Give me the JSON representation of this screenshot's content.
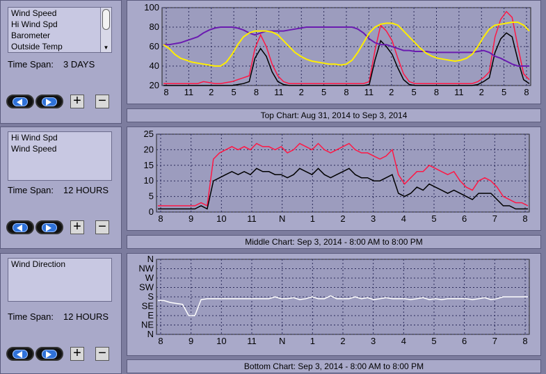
{
  "colors": {
    "plot_bg": "#9c9cbe",
    "grid": "#2a2a5a",
    "hi_wind": "#ff1744",
    "wind": "#000000",
    "barometer": "#6a1bb0",
    "temp": "#ffee00",
    "direction": "#ffffff"
  },
  "panels": {
    "top": {
      "list_items": [
        "Wind Speed",
        "Hi Wind Spd",
        "Barometer",
        "Outside Temp"
      ],
      "time_span_label": "Time Span:",
      "time_span_value": "3 DAYS",
      "caption": "Top Chart:  Aug 31, 2014  to  Sep 3, 2014"
    },
    "middle": {
      "list_items": [
        "Hi Wind Spd",
        "Wind Speed"
      ],
      "time_span_label": "Time Span:",
      "time_span_value": "12 HOURS",
      "caption": "Middle Chart:  Sep 3, 2014 - 8:00 AM  to  8:00 PM"
    },
    "bottom": {
      "list_items": [
        "Wind Direction"
      ],
      "time_span_label": "Time Span:",
      "time_span_value": "12 HOURS",
      "caption": "Bottom Chart:  Sep 3, 2014 - 8:00 AM  to  8:00 PM"
    }
  },
  "buttons": {
    "back_icon": "left-arrow-icon",
    "forward_icon": "right-arrow-icon",
    "zoom_in": "+",
    "zoom_out": "−"
  },
  "chart_data": [
    {
      "type": "line",
      "title": "",
      "x_ticks": [
        "8",
        "11",
        "2",
        "5",
        "8",
        "11",
        "2",
        "5",
        "8",
        "11",
        "2",
        "5",
        "8",
        "11",
        "2",
        "5",
        "8"
      ],
      "ylim": [
        20,
        100
      ],
      "y_ticks": [
        20,
        40,
        60,
        80,
        100
      ],
      "series": [
        {
          "name": "Hi Wind Spd",
          "color": "#ff1744",
          "values": [
            22,
            22,
            22,
            22,
            22,
            22,
            22,
            24,
            23,
            22,
            22,
            23,
            24,
            26,
            28,
            30,
            58,
            72,
            60,
            42,
            30,
            24,
            22,
            22,
            22,
            22,
            22,
            22,
            22,
            22,
            22,
            22,
            22,
            22,
            22,
            22,
            24,
            56,
            82,
            76,
            66,
            48,
            32,
            24,
            22,
            22,
            22,
            22,
            22,
            22,
            22,
            22,
            22,
            22,
            22,
            24,
            28,
            34,
            70,
            88,
            96,
            90,
            60,
            32,
            26
          ]
        },
        {
          "name": "Wind Speed",
          "color": "#000000",
          "values": [
            20,
            20,
            20,
            20,
            20,
            20,
            20,
            20,
            20,
            20,
            20,
            20,
            20,
            21,
            22,
            24,
            48,
            58,
            50,
            34,
            24,
            21,
            20,
            20,
            20,
            20,
            20,
            20,
            20,
            20,
            20,
            20,
            20,
            20,
            20,
            20,
            21,
            46,
            66,
            60,
            52,
            38,
            26,
            21,
            20,
            20,
            20,
            20,
            20,
            20,
            20,
            20,
            20,
            20,
            20,
            21,
            24,
            28,
            54,
            68,
            74,
            70,
            46,
            26,
            22
          ]
        },
        {
          "name": "Barometer",
          "color": "#6a1bb0",
          "values": [
            62,
            62,
            63,
            64,
            66,
            68,
            70,
            74,
            77,
            79,
            80,
            80,
            80,
            79,
            77,
            74,
            72,
            74,
            76,
            76,
            76,
            76,
            77,
            78,
            79,
            80,
            80,
            80,
            80,
            80,
            80,
            80,
            80,
            80,
            78,
            74,
            68,
            64,
            62,
            62,
            60,
            58,
            56,
            56,
            55,
            55,
            55,
            54,
            54,
            54,
            54,
            54,
            54,
            54,
            54,
            55,
            56,
            54,
            50,
            48,
            45,
            42,
            40,
            40,
            40
          ]
        },
        {
          "name": "Outside Temp",
          "color": "#ffee00",
          "values": [
            62,
            58,
            52,
            48,
            46,
            44,
            43,
            42,
            41,
            40,
            40,
            44,
            52,
            62,
            70,
            74,
            76,
            76,
            76,
            75,
            72,
            66,
            60,
            54,
            50,
            47,
            45,
            44,
            43,
            42,
            42,
            41,
            42,
            46,
            54,
            64,
            74,
            80,
            83,
            84,
            84,
            82,
            76,
            70,
            64,
            58,
            53,
            50,
            48,
            47,
            46,
            45,
            46,
            48,
            52,
            60,
            70,
            78,
            82,
            83,
            84,
            85,
            85,
            82,
            76
          ]
        }
      ]
    },
    {
      "type": "line",
      "title": "",
      "x_ticks": [
        "8",
        "9",
        "10",
        "11",
        "N",
        "1",
        "2",
        "3",
        "4",
        "5",
        "6",
        "7",
        "8"
      ],
      "ylim": [
        0,
        25
      ],
      "y_ticks": [
        0,
        5,
        10,
        15,
        20,
        25
      ],
      "series": [
        {
          "name": "Hi Wind Spd",
          "color": "#ff1744",
          "values": [
            2,
            2,
            2,
            2,
            2,
            2,
            2,
            3,
            2,
            17,
            19,
            20,
            21,
            20,
            21,
            20,
            22,
            21,
            21,
            20,
            21,
            19,
            20,
            22,
            21,
            20,
            22,
            20,
            19,
            20,
            21,
            22,
            20,
            19,
            19,
            18,
            17,
            18,
            20,
            12,
            9,
            11,
            13,
            13,
            15,
            14,
            13,
            12,
            13,
            10,
            8,
            7,
            10,
            11,
            10,
            8,
            5,
            4,
            3,
            3,
            2
          ]
        },
        {
          "name": "Wind Speed",
          "color": "#000000",
          "values": [
            1,
            1,
            1,
            1,
            1,
            1,
            1,
            2,
            1,
            10,
            11,
            12,
            13,
            12,
            13,
            12,
            14,
            13,
            13,
            12,
            12,
            11,
            12,
            14,
            13,
            12,
            14,
            12,
            11,
            12,
            13,
            14,
            12,
            11,
            11,
            10,
            10,
            11,
            12,
            6,
            5,
            6,
            8,
            7,
            9,
            8,
            7,
            6,
            7,
            6,
            5,
            4,
            6,
            6,
            6,
            4,
            2,
            2,
            1,
            1,
            1
          ]
        }
      ]
    },
    {
      "type": "line",
      "title": "",
      "x_ticks": [
        "8",
        "9",
        "10",
        "11",
        "N",
        "1",
        "2",
        "3",
        "4",
        "5",
        "6",
        "7",
        "8"
      ],
      "y_ticks": [
        "N",
        "NW",
        "W",
        "SW",
        "S",
        "SE",
        "E",
        "NE",
        "N"
      ],
      "series": [
        {
          "name": "Wind Direction",
          "color": "#ffffff",
          "values": [
            4.4,
            4.4,
            4.6,
            4.7,
            4.8,
            6.0,
            6.0,
            4.3,
            4.2,
            4.2,
            4.2,
            4.2,
            4.2,
            4.2,
            4.2,
            4.2,
            4.2,
            4.2,
            4.2,
            4.0,
            4.2,
            4.2,
            4.1,
            4.3,
            4.2,
            4.0,
            4.2,
            4.2,
            3.9,
            4.2,
            4.2,
            4.2,
            4.0,
            4.2,
            4.1,
            4.3,
            4.2,
            4.1,
            4.2,
            4.2,
            4.2,
            4.3,
            4.2,
            4.1,
            4.3,
            4.2,
            4.3,
            4.2,
            4.2,
            4.2,
            4.2,
            4.3,
            4.2,
            4.1,
            4.3,
            4.2,
            4.0,
            4.0,
            4.0,
            4.0,
            4.0
          ]
        }
      ]
    }
  ]
}
